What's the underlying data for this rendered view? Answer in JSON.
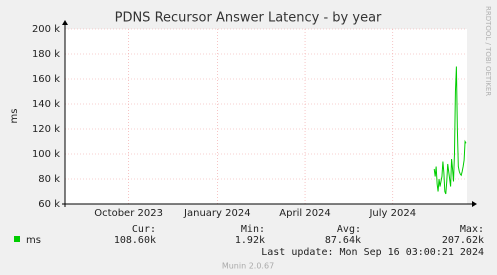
{
  "chart_data": {
    "type": "line",
    "title": "PDNS Recursor Answer Latency - by year",
    "y_label": "ms",
    "side_text": "RRDTOOL / TOBI OETIKER",
    "x": [
      "2024-08-13",
      "2024-08-14",
      "2024-08-15",
      "2024-08-16",
      "2024-08-17",
      "2024-08-18",
      "2024-08-19",
      "2024-08-20",
      "2024-08-21",
      "2024-08-22",
      "2024-08-23",
      "2024-08-24",
      "2024-08-25",
      "2024-08-26",
      "2024-08-27",
      "2024-08-28",
      "2024-08-29",
      "2024-08-30",
      "2024-08-31",
      "2024-09-01",
      "2024-09-02",
      "2024-09-03",
      "2024-09-04",
      "2024-09-05",
      "2024-09-06",
      "2024-09-07",
      "2024-09-08",
      "2024-09-09",
      "2024-09-10",
      "2024-09-11",
      "2024-09-12",
      "2024-09-13",
      "2024-09-14",
      "2024-09-15"
    ],
    "series": [
      {
        "name": "ms",
        "color": "#00cc00",
        "values": [
          88000,
          82000,
          90000,
          76000,
          70000,
          80000,
          74000,
          78000,
          82000,
          94000,
          85000,
          70000,
          68000,
          78000,
          92000,
          86000,
          80000,
          74000,
          96000,
          88000,
          78000,
          100000,
          150000,
          170000,
          120000,
          90000,
          86000,
          84000,
          83000,
          86000,
          90000,
          95000,
          110000,
          108600
        ]
      }
    ],
    "xlim": [
      "2023-07-27",
      "2024-09-16"
    ],
    "xticks": [
      {
        "value": "2023-10-01",
        "label": "October 2023"
      },
      {
        "value": "2024-01-01",
        "label": "January 2024"
      },
      {
        "value": "2024-04-01",
        "label": "April 2024"
      },
      {
        "value": "2024-07-01",
        "label": "July 2024"
      }
    ],
    "ylim": [
      60000,
      200000
    ],
    "yticks": [
      {
        "value": 60000,
        "label": "60 k"
      },
      {
        "value": 80000,
        "label": "80 k"
      },
      {
        "value": 100000,
        "label": "100 k"
      },
      {
        "value": 120000,
        "label": "120 k"
      },
      {
        "value": 140000,
        "label": "140 k"
      },
      {
        "value": 160000,
        "label": "160 k"
      },
      {
        "value": 180000,
        "label": "180 k"
      },
      {
        "value": 200000,
        "label": "200 k"
      }
    ],
    "grid": true,
    "legend_table": {
      "headers": [
        "Cur:",
        "Min:",
        "Avg:",
        "Max:"
      ],
      "values": [
        "108.60k",
        "1.92k",
        "87.64k",
        "207.62k"
      ]
    },
    "last_update": "Last update: Mon Sep 16 03:00:21 2024",
    "footer": "Munin 2.0.67"
  }
}
